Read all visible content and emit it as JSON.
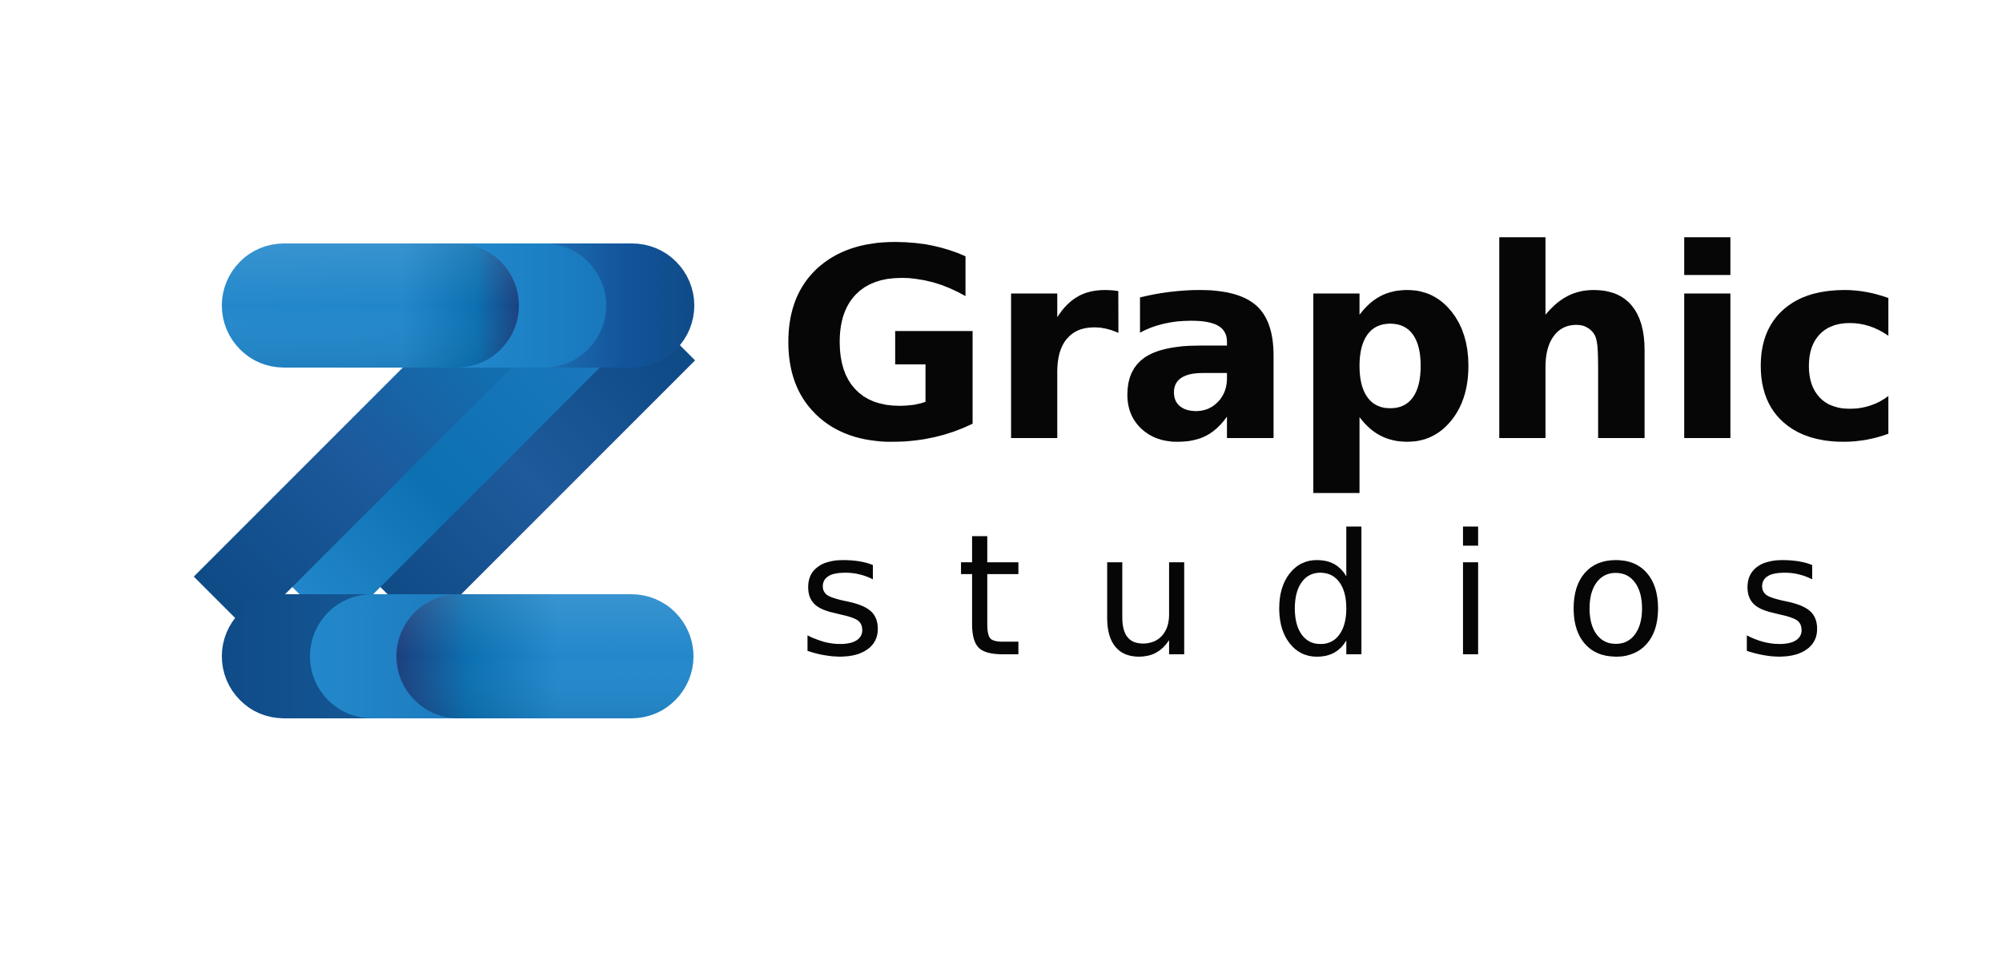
{
  "brand": {
    "name_primary": "Graphic",
    "name_secondary": "studios",
    "mark_letter": "Z"
  },
  "colors": {
    "background": "#ffffff",
    "text": "#060606",
    "blue_light": "#2388cb",
    "blue_mid": "#0c70b1",
    "blue_dark": "#0f4b87",
    "blue_deep": "#1c3f7e"
  },
  "icons": {
    "logo_mark": "z-ribbon-logo-icon"
  }
}
